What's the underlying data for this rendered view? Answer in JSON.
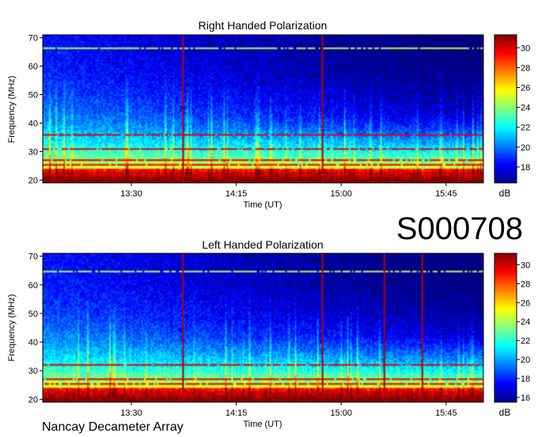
{
  "page": {
    "id_label": "S000708",
    "footer": "Nancay Decameter Array"
  },
  "chart_data": [
    {
      "type": "heatmap",
      "title": "Right Handed Polarization",
      "xlabel": "Time (UT)",
      "ylabel": "Frequency (MHz)",
      "x_ticks": [
        "13:30",
        "14:15",
        "15:00",
        "15:45"
      ],
      "x_tick_minutes": [
        810,
        855,
        900,
        945
      ],
      "xlim_minutes": [
        772,
        961
      ],
      "ylim": [
        19,
        71
      ],
      "y_ticks": [
        20,
        30,
        40,
        50,
        60,
        70
      ],
      "colorbar": {
        "label": "dB",
        "ticks": [
          18,
          20,
          22,
          24,
          26,
          28,
          30
        ],
        "range": [
          16.4,
          31.3
        ]
      },
      "colormap": "jet",
      "vertical_events_minutes": [
        832,
        892
      ],
      "rfi_lines_mhz": [
        21.2,
        22.5,
        25.3,
        27.0,
        31.0,
        35.5,
        66.8
      ]
    },
    {
      "type": "heatmap",
      "title": "Left Handed Polarization",
      "xlabel": "Time (UT)",
      "ylabel": "Frequency (MHz)",
      "x_ticks": [
        "13:30",
        "14:15",
        "15:00",
        "15:45"
      ],
      "x_tick_minutes": [
        810,
        855,
        900,
        945
      ],
      "xlim_minutes": [
        772,
        961
      ],
      "ylim": [
        19,
        71
      ],
      "y_ticks": [
        20,
        30,
        40,
        50,
        60,
        70
      ],
      "colorbar": {
        "label": "dB",
        "ticks": [
          16,
          18,
          20,
          22,
          24,
          26,
          28,
          30
        ],
        "range": [
          15.5,
          31.2
        ]
      },
      "colormap": "jet",
      "vertical_events_minutes": [
        832,
        892,
        919,
        935
      ],
      "rfi_lines_mhz": [
        21.2,
        22.5,
        25.3,
        27.0,
        32.0,
        65.0
      ]
    }
  ]
}
